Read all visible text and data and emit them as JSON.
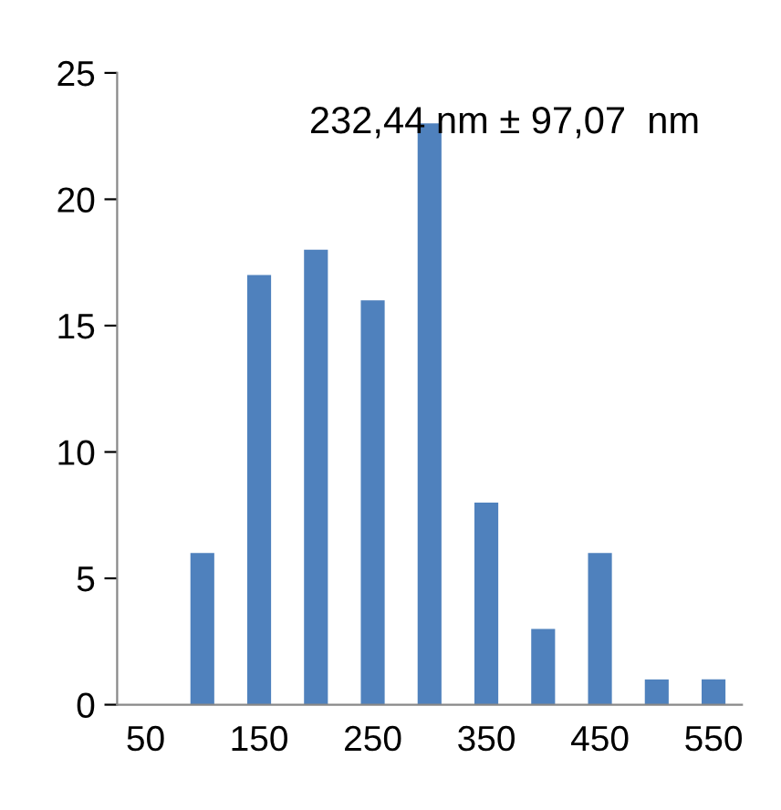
{
  "chart_data": {
    "type": "bar",
    "categories": [
      "50",
      null,
      "150",
      null,
      "250",
      null,
      "350",
      null,
      "450",
      null,
      "550"
    ],
    "values": [
      0,
      6,
      17,
      18,
      16,
      23,
      8,
      3,
      6,
      1,
      1
    ],
    "color": "#4f81bd",
    "ylim": [
      0,
      25
    ],
    "yticks": [
      0,
      5,
      10,
      15,
      20,
      25
    ],
    "grid": false,
    "annotations": [
      "232,44 nm ± 97,07  nm"
    ]
  }
}
